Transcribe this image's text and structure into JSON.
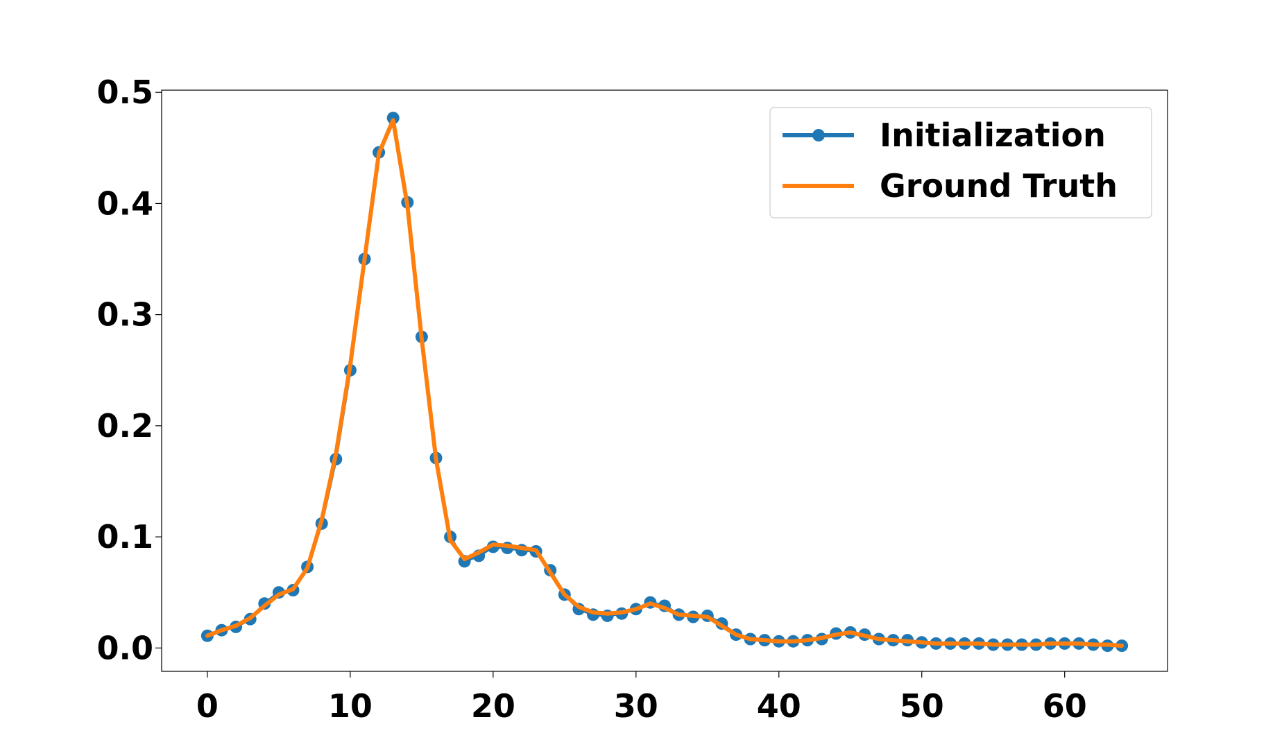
{
  "chart_data": {
    "type": "line",
    "title": "",
    "xlabel": "",
    "ylabel": "",
    "xlim": [
      -3.2,
      67.2
    ],
    "ylim": [
      -0.021,
      0.502
    ],
    "x_ticks": [
      0,
      10,
      20,
      30,
      40,
      50,
      60
    ],
    "x_tick_labels": [
      "0",
      "10",
      "20",
      "30",
      "40",
      "50",
      "60"
    ],
    "y_ticks": [
      0.0,
      0.1,
      0.2,
      0.3,
      0.4,
      0.5
    ],
    "y_tick_labels": [
      "0.0",
      "0.1",
      "0.2",
      "0.3",
      "0.4",
      "0.5"
    ],
    "grid": false,
    "legend": {
      "placement": "top-right",
      "entries": [
        "Initialization",
        "Ground Truth"
      ]
    },
    "series": [
      {
        "name": "Initialization",
        "color": "#1f77b4",
        "marker": "circle",
        "x": [
          0,
          1,
          2,
          3,
          4,
          5,
          6,
          7,
          8,
          9,
          10,
          11,
          12,
          13,
          14,
          15,
          16,
          17,
          18,
          19,
          20,
          21,
          22,
          23,
          24,
          25,
          26,
          27,
          28,
          29,
          30,
          31,
          32,
          33,
          34,
          35,
          36,
          37,
          38,
          39,
          40,
          41,
          42,
          43,
          44,
          45,
          46,
          47,
          48,
          49,
          50,
          51,
          52,
          53,
          54,
          55,
          56,
          57,
          58,
          59,
          60,
          61,
          62,
          63,
          64
        ],
        "values": [
          0.011,
          0.016,
          0.019,
          0.026,
          0.04,
          0.05,
          0.052,
          0.073,
          0.112,
          0.17,
          0.25,
          0.35,
          0.446,
          0.477,
          0.401,
          0.28,
          0.171,
          0.1,
          0.078,
          0.083,
          0.091,
          0.09,
          0.088,
          0.087,
          0.07,
          0.048,
          0.035,
          0.03,
          0.029,
          0.031,
          0.035,
          0.041,
          0.038,
          0.03,
          0.028,
          0.029,
          0.022,
          0.012,
          0.008,
          0.007,
          0.006,
          0.006,
          0.007,
          0.008,
          0.013,
          0.014,
          0.012,
          0.008,
          0.007,
          0.007,
          0.005,
          0.004,
          0.004,
          0.004,
          0.004,
          0.003,
          0.003,
          0.003,
          0.003,
          0.004,
          0.004,
          0.004,
          0.003,
          0.002,
          0.002
        ]
      },
      {
        "name": "Ground Truth",
        "color": "#ff7f0e",
        "marker": "none",
        "x": [
          0,
          1,
          2,
          3,
          4,
          5,
          6,
          7,
          8,
          9,
          10,
          11,
          12,
          13,
          14,
          15,
          16,
          17,
          18,
          19,
          20,
          21,
          22,
          23,
          24,
          25,
          26,
          27,
          28,
          29,
          30,
          31,
          32,
          33,
          34,
          35,
          36,
          37,
          38,
          39,
          40,
          41,
          42,
          43,
          44,
          45,
          46,
          47,
          48,
          49,
          50,
          51,
          52,
          53,
          54,
          55,
          56,
          57,
          58,
          59,
          60,
          61,
          62,
          63,
          64
        ],
        "values": [
          0.011,
          0.016,
          0.02,
          0.027,
          0.038,
          0.048,
          0.053,
          0.072,
          0.115,
          0.175,
          0.255,
          0.35,
          0.445,
          0.475,
          0.398,
          0.278,
          0.17,
          0.097,
          0.08,
          0.086,
          0.093,
          0.092,
          0.09,
          0.088,
          0.068,
          0.048,
          0.037,
          0.032,
          0.031,
          0.032,
          0.035,
          0.04,
          0.036,
          0.03,
          0.029,
          0.028,
          0.02,
          0.012,
          0.008,
          0.007,
          0.006,
          0.006,
          0.007,
          0.009,
          0.012,
          0.014,
          0.011,
          0.008,
          0.007,
          0.006,
          0.005,
          0.004,
          0.004,
          0.004,
          0.004,
          0.003,
          0.003,
          0.003,
          0.003,
          0.004,
          0.004,
          0.004,
          0.003,
          0.003,
          0.002
        ]
      }
    ]
  }
}
